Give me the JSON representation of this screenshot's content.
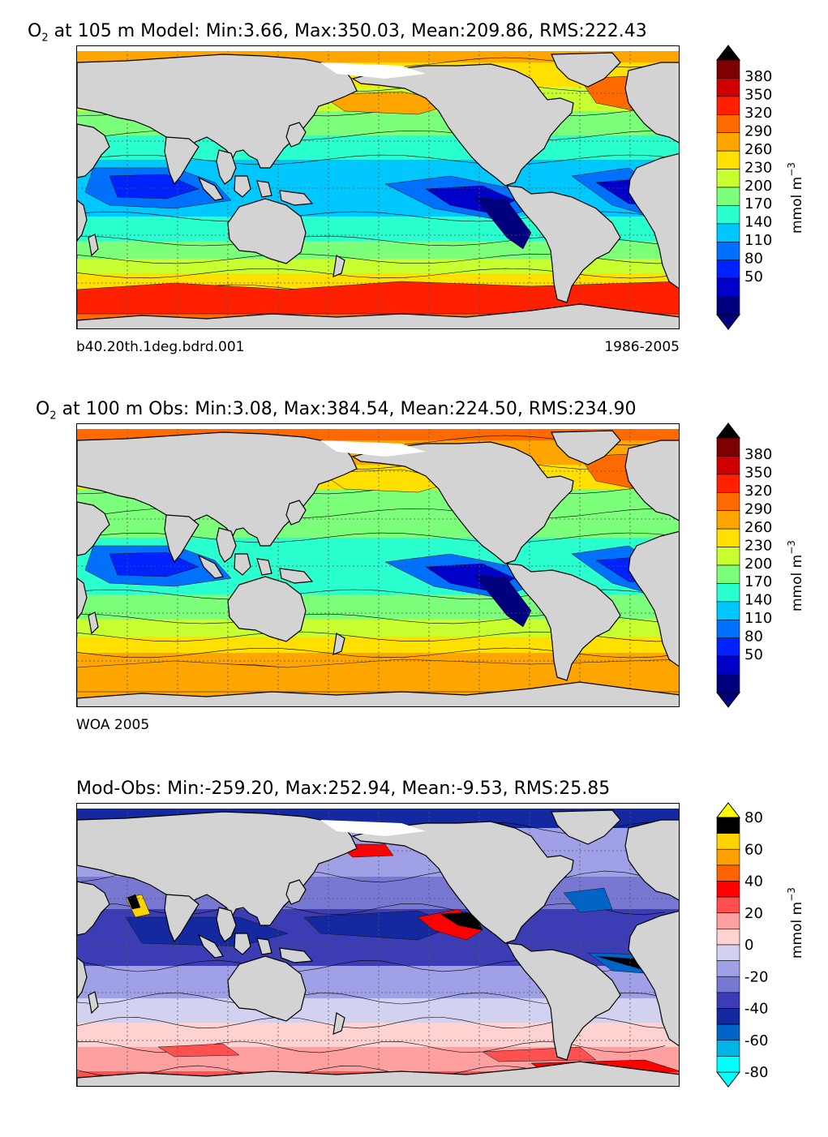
{
  "panels": [
    {
      "id": "model",
      "title_prefix": "O",
      "title_sub": "2",
      "title_rest": " at 105 m Model: Min:3.66, Max:350.03, Mean:209.86, RMS:222.43",
      "caption_left": "b40.20th.1deg.bdrd.001",
      "caption_right": "1986-2005",
      "colorbar": {
        "ticks": [
          "380",
          "350",
          "320",
          "290",
          "260",
          "230",
          "200",
          "170",
          "140",
          "110",
          "80",
          "50"
        ],
        "unit": "mmol m",
        "unit_sup": "−3"
      }
    },
    {
      "id": "obs",
      "title_prefix": "O",
      "title_sub": "2",
      "title_rest": " at 100 m Obs: Min:3.08, Max:384.54, Mean:224.50, RMS:234.90",
      "caption_left": "WOA 2005",
      "caption_right": "",
      "colorbar": {
        "ticks": [
          "380",
          "350",
          "320",
          "290",
          "260",
          "230",
          "200",
          "170",
          "140",
          "110",
          "80",
          "50"
        ],
        "unit": "mmol m",
        "unit_sup": "−3"
      }
    },
    {
      "id": "diff",
      "title_prefix": "",
      "title_sub": "",
      "title_rest": "Mod-Obs: Min:-259.20, Max:252.94, Mean:-9.53, RMS:25.85",
      "caption_left": "",
      "caption_right": "",
      "colorbar": {
        "ticks": [
          "80",
          "60",
          "40",
          "20",
          "0",
          "-20",
          "-40",
          "-60",
          "-80"
        ],
        "unit": "mmol m",
        "unit_sup": "−3"
      }
    }
  ],
  "colors": {
    "land": "#d3d3d3",
    "o2_scale": [
      "#00007f",
      "#0000c8",
      "#0022ff",
      "#0070ff",
      "#00c8ff",
      "#2affd0",
      "#7cff7a",
      "#c8ff30",
      "#ffe000",
      "#ffa500",
      "#ff6a00",
      "#ff2000",
      "#d00000",
      "#7f0000"
    ],
    "diff_scale": [
      "#000000",
      "#00ffff",
      "#00b4e6",
      "#0064c8",
      "#1428a0",
      "#3c3cb4",
      "#7878d2",
      "#a0a0e6",
      "#d2d2f0",
      "#ffd2d2",
      "#ffa0a0",
      "#ff5050",
      "#ff0000",
      "#ff6400",
      "#ffa000",
      "#ffd200",
      "#ffff00"
    ]
  }
}
